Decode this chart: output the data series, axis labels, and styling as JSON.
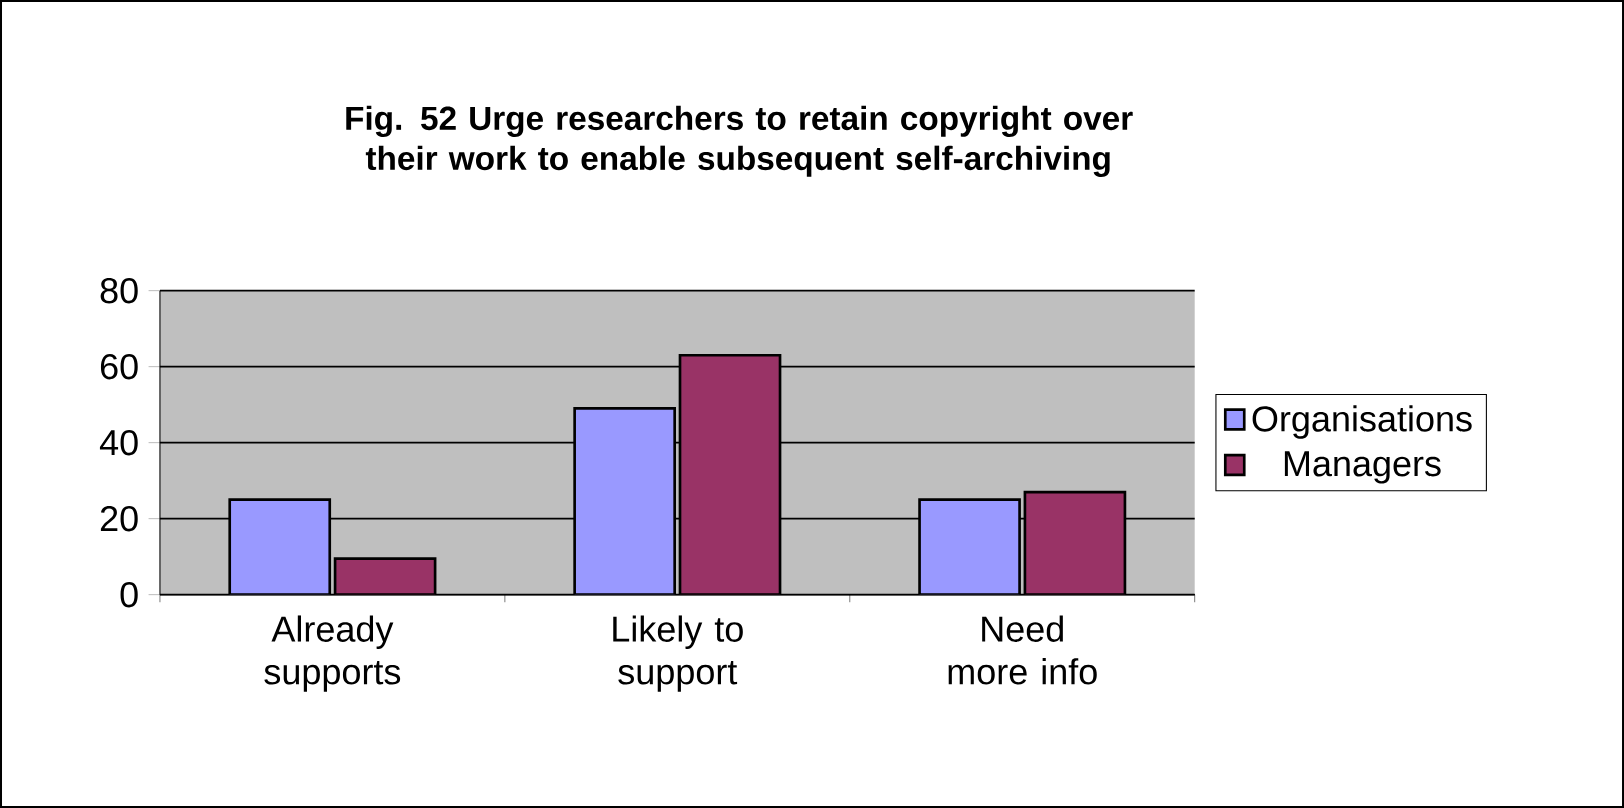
{
  "chart_data": {
    "type": "bar",
    "title": "Fig. 52  Urge researchers to retain copyright over their work to enable subsequent self-archiving",
    "categories": [
      "Already supports",
      "Likely to support",
      "Need more info"
    ],
    "series": [
      {
        "name": "Organisations",
        "color": "#9999ff",
        "values": [
          25,
          49,
          25
        ]
      },
      {
        "name": "Managers",
        "color": "#993366",
        "values": [
          9.5,
          63,
          27
        ]
      }
    ],
    "ylim": [
      0,
      80
    ],
    "yticks": [
      0,
      20,
      40,
      60,
      80
    ],
    "grid": "y",
    "legend": "right"
  }
}
